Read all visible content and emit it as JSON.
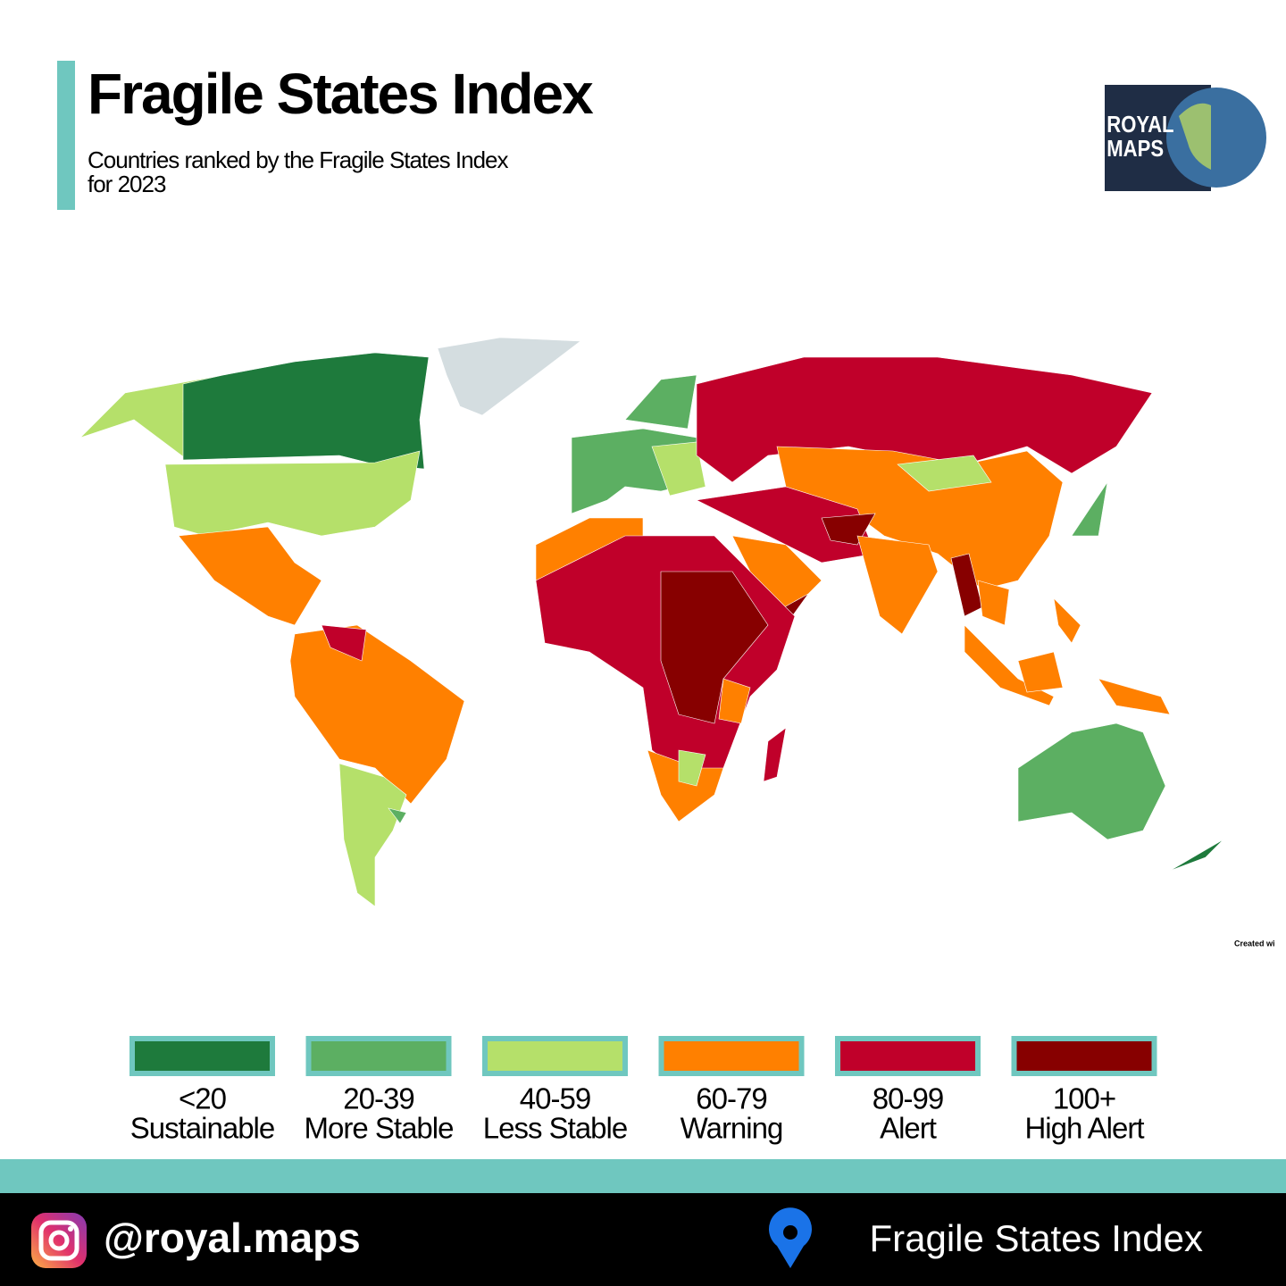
{
  "header": {
    "title": "Fragile States Index",
    "subtitle_lines": [
      "Countries ranked by the Fragile States Index",
      "for 2023"
    ]
  },
  "logo": {
    "lines": [
      "ROYAL",
      "MAPS"
    ]
  },
  "credit": "Created wi",
  "legend": {
    "items": [
      {
        "range": "<20",
        "label": "Sustainable",
        "color": "#1e7a3c"
      },
      {
        "range": "20-39",
        "label": "More Stable",
        "color": "#5caf62"
      },
      {
        "range": "40-59",
        "label": "Less Stable",
        "color": "#b5e06a"
      },
      {
        "range": "60-79",
        "label": "Warning",
        "color": "#ff8000"
      },
      {
        "range": "80-99",
        "label": "Alert",
        "color": "#c0002a"
      },
      {
        "range": "100+",
        "label": "High Alert",
        "color": "#870000"
      }
    ]
  },
  "footer": {
    "handle": "@royal.maps",
    "caption": "Fragile States Index"
  }
}
